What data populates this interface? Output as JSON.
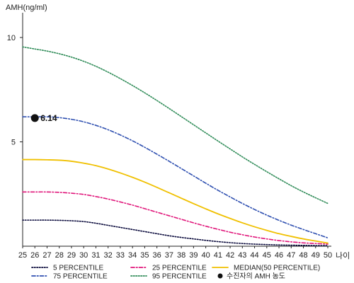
{
  "chart_data": {
    "type": "line",
    "ylabel": "AMH(ng/ml)",
    "xlabel": "나이",
    "xlim": [
      25,
      50
    ],
    "ylim": [
      0,
      11
    ],
    "yticks": [
      5,
      10
    ],
    "x": [
      25,
      26,
      27,
      28,
      29,
      30,
      31,
      32,
      33,
      34,
      35,
      36,
      37,
      38,
      39,
      40,
      41,
      42,
      43,
      44,
      45,
      46,
      47,
      48,
      49,
      50
    ],
    "series": [
      {
        "name": "5 PERCENTILE",
        "color": "#0a0a3c",
        "dash": "dotted",
        "values": [
          1.25,
          1.25,
          1.25,
          1.24,
          1.22,
          1.18,
          1.1,
          1.0,
          0.9,
          0.8,
          0.7,
          0.6,
          0.5,
          0.42,
          0.35,
          0.28,
          0.22,
          0.17,
          0.13,
          0.1,
          0.08,
          0.06,
          0.05,
          0.04,
          0.03,
          0.03
        ]
      },
      {
        "name": "25 PERCENTILE",
        "color": "#e0157a",
        "dash": "dashdot",
        "values": [
          2.6,
          2.6,
          2.6,
          2.58,
          2.54,
          2.48,
          2.38,
          2.26,
          2.12,
          1.97,
          1.8,
          1.63,
          1.46,
          1.29,
          1.12,
          0.96,
          0.81,
          0.67,
          0.55,
          0.44,
          0.35,
          0.27,
          0.21,
          0.16,
          0.13,
          0.1
        ]
      },
      {
        "name": "MEDIAN(50 PERCENTILE)",
        "color": "#f0c000",
        "dash": "solid",
        "values": [
          4.15,
          4.15,
          4.14,
          4.12,
          4.07,
          3.98,
          3.86,
          3.7,
          3.51,
          3.3,
          3.07,
          2.82,
          2.56,
          2.3,
          2.04,
          1.79,
          1.55,
          1.33,
          1.12,
          0.93,
          0.76,
          0.6,
          0.47,
          0.35,
          0.25,
          0.15
        ]
      },
      {
        "name": "75 PERCENTILE",
        "color": "#2e4fb0",
        "dash": "dashdot",
        "values": [
          6.2,
          6.2,
          6.2,
          6.16,
          6.08,
          5.96,
          5.79,
          5.58,
          5.33,
          5.05,
          4.74,
          4.41,
          4.07,
          3.72,
          3.37,
          3.02,
          2.68,
          2.36,
          2.05,
          1.76,
          1.49,
          1.24,
          1.01,
          0.8,
          0.6,
          0.4
        ]
      },
      {
        "name": "95 PERCENTILE",
        "color": "#2e8b57",
        "dash": "dotted",
        "values": [
          9.55,
          9.45,
          9.35,
          9.22,
          9.06,
          8.86,
          8.62,
          8.34,
          8.03,
          7.7,
          7.35,
          6.98,
          6.6,
          6.21,
          5.82,
          5.43,
          5.04,
          4.66,
          4.28,
          3.92,
          3.57,
          3.23,
          2.9,
          2.6,
          2.32,
          2.05
        ]
      }
    ],
    "patient_point": {
      "x": 26,
      "y": 6.14,
      "label": "6.14",
      "legend": "수진자의 AMH 농도",
      "color": "#111111"
    },
    "legend_order": [
      "5 PERCENTILE",
      "25 PERCENTILE",
      "MEDIAN(50 PERCENTILE)",
      "75 PERCENTILE",
      "95 PERCENTILE"
    ],
    "grid": false,
    "legend_position": "bottom"
  }
}
